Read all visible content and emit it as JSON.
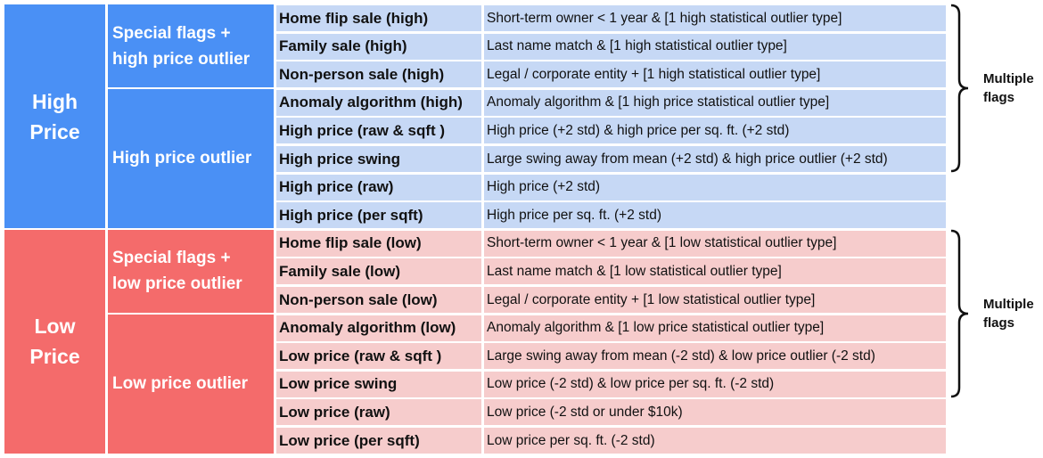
{
  "colors": {
    "high_dark": "#4a90f5",
    "high_light": "#c6d8f5",
    "low_dark": "#f46b6b",
    "low_light": "#f6cccc"
  },
  "icons": {
    "brace": "right-curly-brace-icon"
  },
  "groups": [
    {
      "label_lines": [
        "High",
        "Price"
      ],
      "tone": "high",
      "subgroups": [
        {
          "label_lines": [
            "Special flags +",
            "high price outlier"
          ],
          "rows": 3
        },
        {
          "label_lines": [
            "High price outlier"
          ],
          "rows": 5
        }
      ],
      "rows": [
        {
          "name": "Home flip sale (high)",
          "desc": "Short-term owner < 1 year & [1 high statistical outlier type]"
        },
        {
          "name": "Family sale (high)",
          "desc": "Last name match & [1 high statistical outlier type]"
        },
        {
          "name": "Non-person sale (high)",
          "desc": "Legal / corporate entity + [1 high statistical outlier type]"
        },
        {
          "name": "Anomaly algorithm (high)",
          "desc": "Anomaly algorithm & [1 high price statistical outlier type]"
        },
        {
          "name": "High price (raw & sqft )",
          "desc": "High price (+2 std) & high price per sq. ft. (+2 std)"
        },
        {
          "name": "High price swing",
          "desc": "Large swing away from mean (+2 std) & high price outlier (+2 std)"
        },
        {
          "name": "High price (raw)",
          "desc": "High price (+2 std)"
        },
        {
          "name": "High price (per sqft)",
          "desc": "High price per sq. ft. (+2 std)"
        }
      ],
      "brace": {
        "label_lines": [
          "Multiple",
          "flags"
        ],
        "from_row": 0,
        "to_row": 5
      }
    },
    {
      "label_lines": [
        "Low",
        "Price"
      ],
      "tone": "low",
      "subgroups": [
        {
          "label_lines": [
            "Special flags +",
            "low price outlier"
          ],
          "rows": 3
        },
        {
          "label_lines": [
            "Low price outlier"
          ],
          "rows": 5
        }
      ],
      "rows": [
        {
          "name": "Home flip sale (low)",
          "desc": "Short-term owner < 1 year & [1 low statistical outlier type]"
        },
        {
          "name": "Family sale (low)",
          "desc": "Last name match & [1 low statistical outlier type]"
        },
        {
          "name": "Non-person sale (low)",
          "desc": "Legal / corporate entity + [1 low statistical outlier type]"
        },
        {
          "name": "Anomaly algorithm (low)",
          "desc": "Anomaly algorithm & [1 low price statistical outlier type]"
        },
        {
          "name": "Low price (raw & sqft )",
          "desc": "Large swing away from mean (-2 std) & low price outlier (-2 std)"
        },
        {
          "name": "Low price swing",
          "desc": "Low price (-2 std) & low price per sq. ft. (-2 std)"
        },
        {
          "name": "Low price (raw)",
          "desc": "Low price (-2 std or under $10k)"
        },
        {
          "name": "Low price (per sqft)",
          "desc": "Low price per sq. ft. (-2 std)"
        }
      ],
      "brace": {
        "label_lines": [
          "Multiple",
          "flags"
        ],
        "from_row": 0,
        "to_row": 5
      }
    }
  ]
}
